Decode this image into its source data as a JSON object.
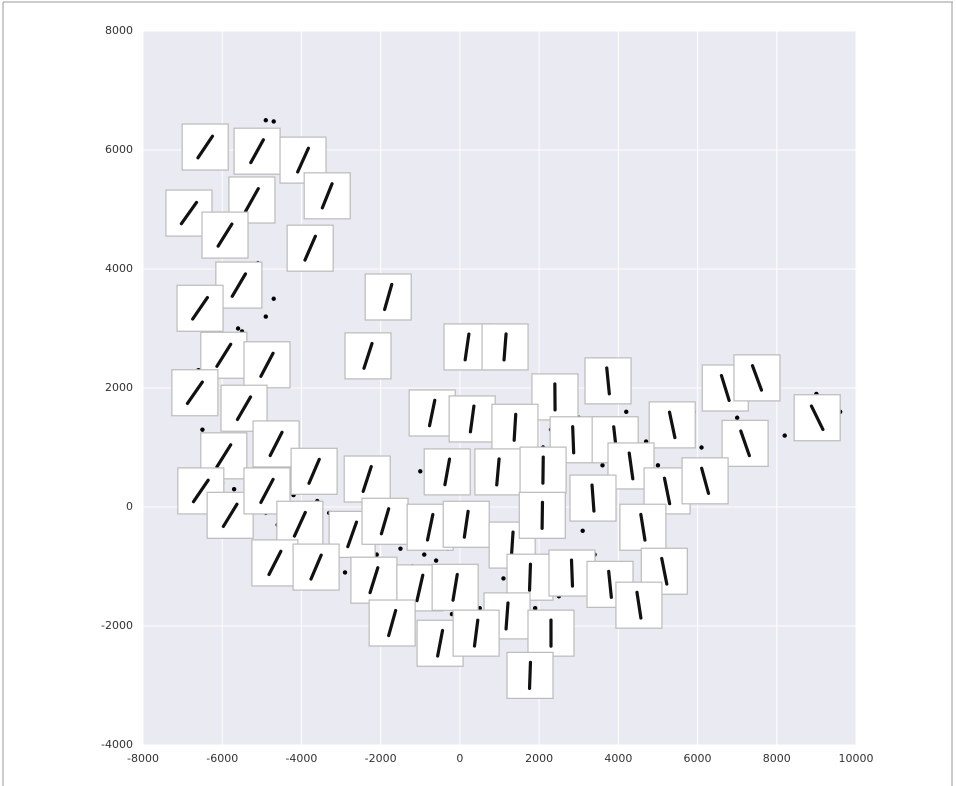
{
  "chart_data": {
    "type": "scatter",
    "xlim": [
      -8000,
      10000
    ],
    "ylim": [
      -4000,
      8000
    ],
    "xticks": [
      -8000,
      -6000,
      -4000,
      -2000,
      0,
      2000,
      4000,
      6000,
      8000,
      10000
    ],
    "yticks": [
      -4000,
      -2000,
      0,
      2000,
      4000,
      6000,
      8000
    ],
    "grid": true,
    "color": "#000000",
    "x": [
      -4900,
      -4700,
      -5800,
      -5400,
      -5100,
      -4700,
      -4900,
      -5600,
      -5500,
      -6400,
      -6600,
      -6800,
      -6900,
      -6500,
      -6200,
      -6000,
      -5700,
      -5300,
      -4900,
      -4600,
      -4200,
      -3900,
      -3600,
      -3300,
      -3000,
      -2700,
      -2600,
      -2900,
      -3100,
      -2400,
      -2100,
      -1800,
      -1500,
      -1200,
      -900,
      -600,
      -300,
      0,
      300,
      600,
      900,
      1100,
      800,
      500,
      200,
      -200,
      -700,
      1300,
      1600,
      1800,
      1900,
      2100,
      2300,
      2500,
      2700,
      3000,
      3200,
      3400,
      3600,
      3900,
      4200,
      4400,
      4500,
      4700,
      4900,
      5000,
      5300,
      5600,
      5900,
      6100,
      6400,
      7000,
      7500,
      8200,
      9000,
      9600,
      3100,
      3400,
      3800,
      4100,
      2900,
      2500,
      1900,
      4800,
      4400,
      1200,
      -1000,
      700,
      2000,
      2200
    ],
    "y": [
      6500,
      6480,
      4500,
      4400,
      4100,
      3500,
      3200,
      3000,
      2950,
      2700,
      2300,
      2100,
      1600,
      1300,
      1100,
      400,
      300,
      150,
      -100,
      -300,
      200,
      0,
      100,
      -100,
      -200,
      -500,
      -900,
      -1100,
      -1200,
      -1300,
      -800,
      -900,
      -700,
      -1000,
      -800,
      -900,
      -700,
      -400,
      -300,
      -600,
      -900,
      -1200,
      -1500,
      -1700,
      -1900,
      -1800,
      -1700,
      -500,
      -200,
      200,
      600,
      1000,
      1300,
      1700,
      1900,
      1500,
      1200,
      900,
      700,
      1300,
      1600,
      1200,
      900,
      1100,
      1500,
      700,
      300,
      1300,
      1600,
      1000,
      1800,
      1500,
      1300,
      1200,
      1900,
      1600,
      -400,
      -800,
      -1300,
      -1900,
      -1000,
      -1500,
      -1700,
      -400,
      -200,
      700,
      600,
      1500,
      2200,
      2100
    ],
    "thumbnails": {
      "x": [
        -6430,
        -5120,
        -3960,
        -3350,
        -6840,
        -5250,
        -5930,
        -3780,
        -5580,
        -1810,
        -6560,
        -5960,
        -4870,
        -2320,
        180,
        1140,
        3740,
        2400,
        6700,
        7500,
        9020,
        -6690,
        -5450,
        -700,
        310,
        1390,
        2860,
        3920,
        5360,
        7200,
        -5960,
        -4640,
        -3680,
        -2340,
        -320,
        960,
        2100,
        4320,
        5230,
        6190,
        -6540,
        -5800,
        -4870,
        -4040,
        -2720,
        -1890,
        -750,
        160,
        1320,
        2080,
        3360,
        4620,
        -4670,
        -3630,
        -2170,
        -1010,
        -120,
        1770,
        2830,
        3790,
        5160,
        4520,
        1190,
        -1710,
        -500,
        410,
        2300,
        1770
      ],
      "y": [
        6050,
        5980,
        5830,
        5230,
        4940,
        5160,
        4570,
        4350,
        3730,
        3530,
        3340,
        2550,
        2390,
        2540,
        2690,
        2690,
        2120,
        1850,
        2000,
        2170,
        1500,
        1920,
        1660,
        1580,
        1480,
        1340,
        1130,
        1130,
        1380,
        1070,
        860,
        1060,
        600,
        470,
        590,
        590,
        620,
        690,
        270,
        440,
        270,
        -140,
        270,
        -290,
        -460,
        -240,
        -340,
        -290,
        -640,
        -140,
        150,
        -340,
        -940,
        -1010,
        -1230,
        -1360,
        -1350,
        -1180,
        -1110,
        -1300,
        -1080,
        -1650,
        -1830,
        -1950,
        -2290,
        -2120,
        -2120,
        -2830
      ]
    }
  }
}
